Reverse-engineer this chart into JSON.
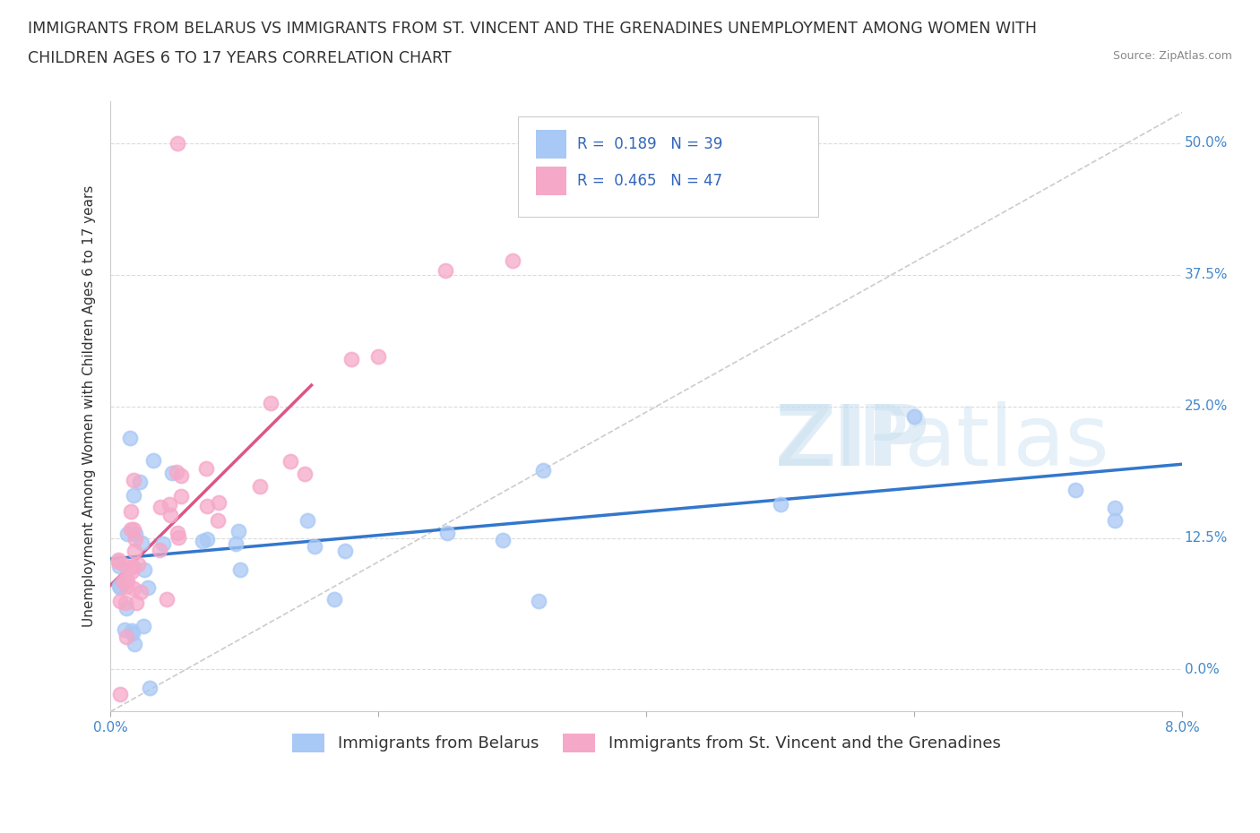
{
  "title_line1": "IMMIGRANTS FROM BELARUS VS IMMIGRANTS FROM ST. VINCENT AND THE GRENADINES UNEMPLOYMENT AMONG WOMEN WITH",
  "title_line2": "CHILDREN AGES 6 TO 17 YEARS CORRELATION CHART",
  "source": "Source: ZipAtlas.com",
  "ylabel": "Unemployment Among Women with Children Ages 6 to 17 years",
  "legend_bottom": [
    "Immigrants from Belarus",
    "Immigrants from St. Vincent and the Grenadines"
  ],
  "R_belarus": 0.189,
  "N_belarus": 39,
  "R_svg": 0.465,
  "N_svg": 47,
  "color_belarus": "#a8c8f5",
  "color_svg": "#f5a8c8",
  "line_color_belarus": "#3377cc",
  "line_color_svg": "#dd5588",
  "xmin": 0.0,
  "xmax": 0.08,
  "ymin": -0.04,
  "ymax": 0.54,
  "yticks": [
    0.0,
    0.125,
    0.25,
    0.375,
    0.5
  ],
  "ytick_labels": [
    "0.0%",
    "12.5%",
    "25.0%",
    "37.5%",
    "50.0%"
  ],
  "xticks": [
    0.0,
    0.02,
    0.04,
    0.06,
    0.08
  ],
  "xtick_labels": [
    "0.0%",
    "",
    "",
    "",
    "8.0%"
  ],
  "background_color": "#ffffff",
  "grid_color": "#cccccc",
  "title_fontsize": 12.5,
  "label_fontsize": 11,
  "tick_fontsize": 11,
  "legend_fontsize": 12
}
